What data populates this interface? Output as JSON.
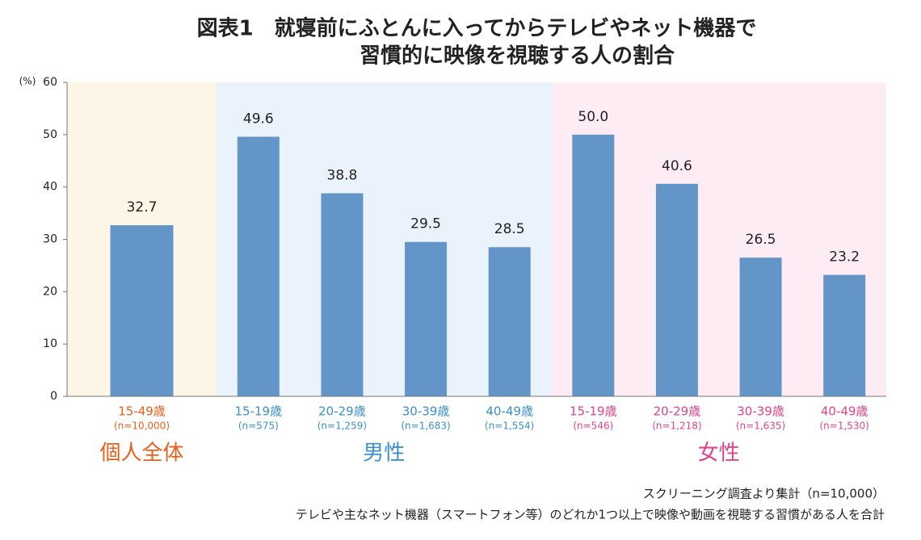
{
  "chart_data": {
    "type": "bar",
    "title": [
      "図表1　就寝前にふとんに入ってからテレビやネット機器で",
      "習慣的に映像を視聴する人の割合"
    ],
    "y_label": "(%)",
    "ylim": [
      0,
      60
    ],
    "yticks": [
      0,
      10,
      20,
      30,
      40,
      50,
      60
    ],
    "color": "#6395c9",
    "groups": [
      {
        "name": "個人全体",
        "color": "#e8601c",
        "background": "#fdf6e7",
        "categories": [
          "15-49歳"
        ],
        "sample_sizes": [
          "(n=10,000)"
        ],
        "values": [
          32.7
        ],
        "value_labels": [
          "32.7"
        ]
      },
      {
        "name": "男性",
        "color": "#3a8fd0",
        "background": "#eaf3fb",
        "categories": [
          "15-19歳",
          "20-29歳",
          "30-39歳",
          "40-49歳"
        ],
        "sample_sizes": [
          "(n=575)",
          "(n=1,259)",
          "(n=1,683)",
          "(n=1,554)"
        ],
        "values": [
          49.6,
          38.8,
          29.5,
          28.5
        ],
        "value_labels": [
          "49.6",
          "38.8",
          "29.5",
          "28.5"
        ]
      },
      {
        "name": "女性",
        "color": "#e0448a",
        "background": "#fdecf3",
        "categories": [
          "15-19歳",
          "20-29歳",
          "30-39歳",
          "40-49歳"
        ],
        "sample_sizes": [
          "(n=546)",
          "(n=1,218)",
          "(n=1,635)",
          "(n=1,530)"
        ],
        "values": [
          50.0,
          40.6,
          26.5,
          23.2
        ],
        "value_labels": [
          "50.0",
          "40.6",
          "26.5",
          "23.2"
        ]
      }
    ],
    "notes": [
      "スクリーニング調査より集計（n=10,000）",
      "テレビや主なネット機器（スマートフォン等）のどれか1つ以上で映像や動画を視聴する習慣がある人を合計"
    ]
  }
}
